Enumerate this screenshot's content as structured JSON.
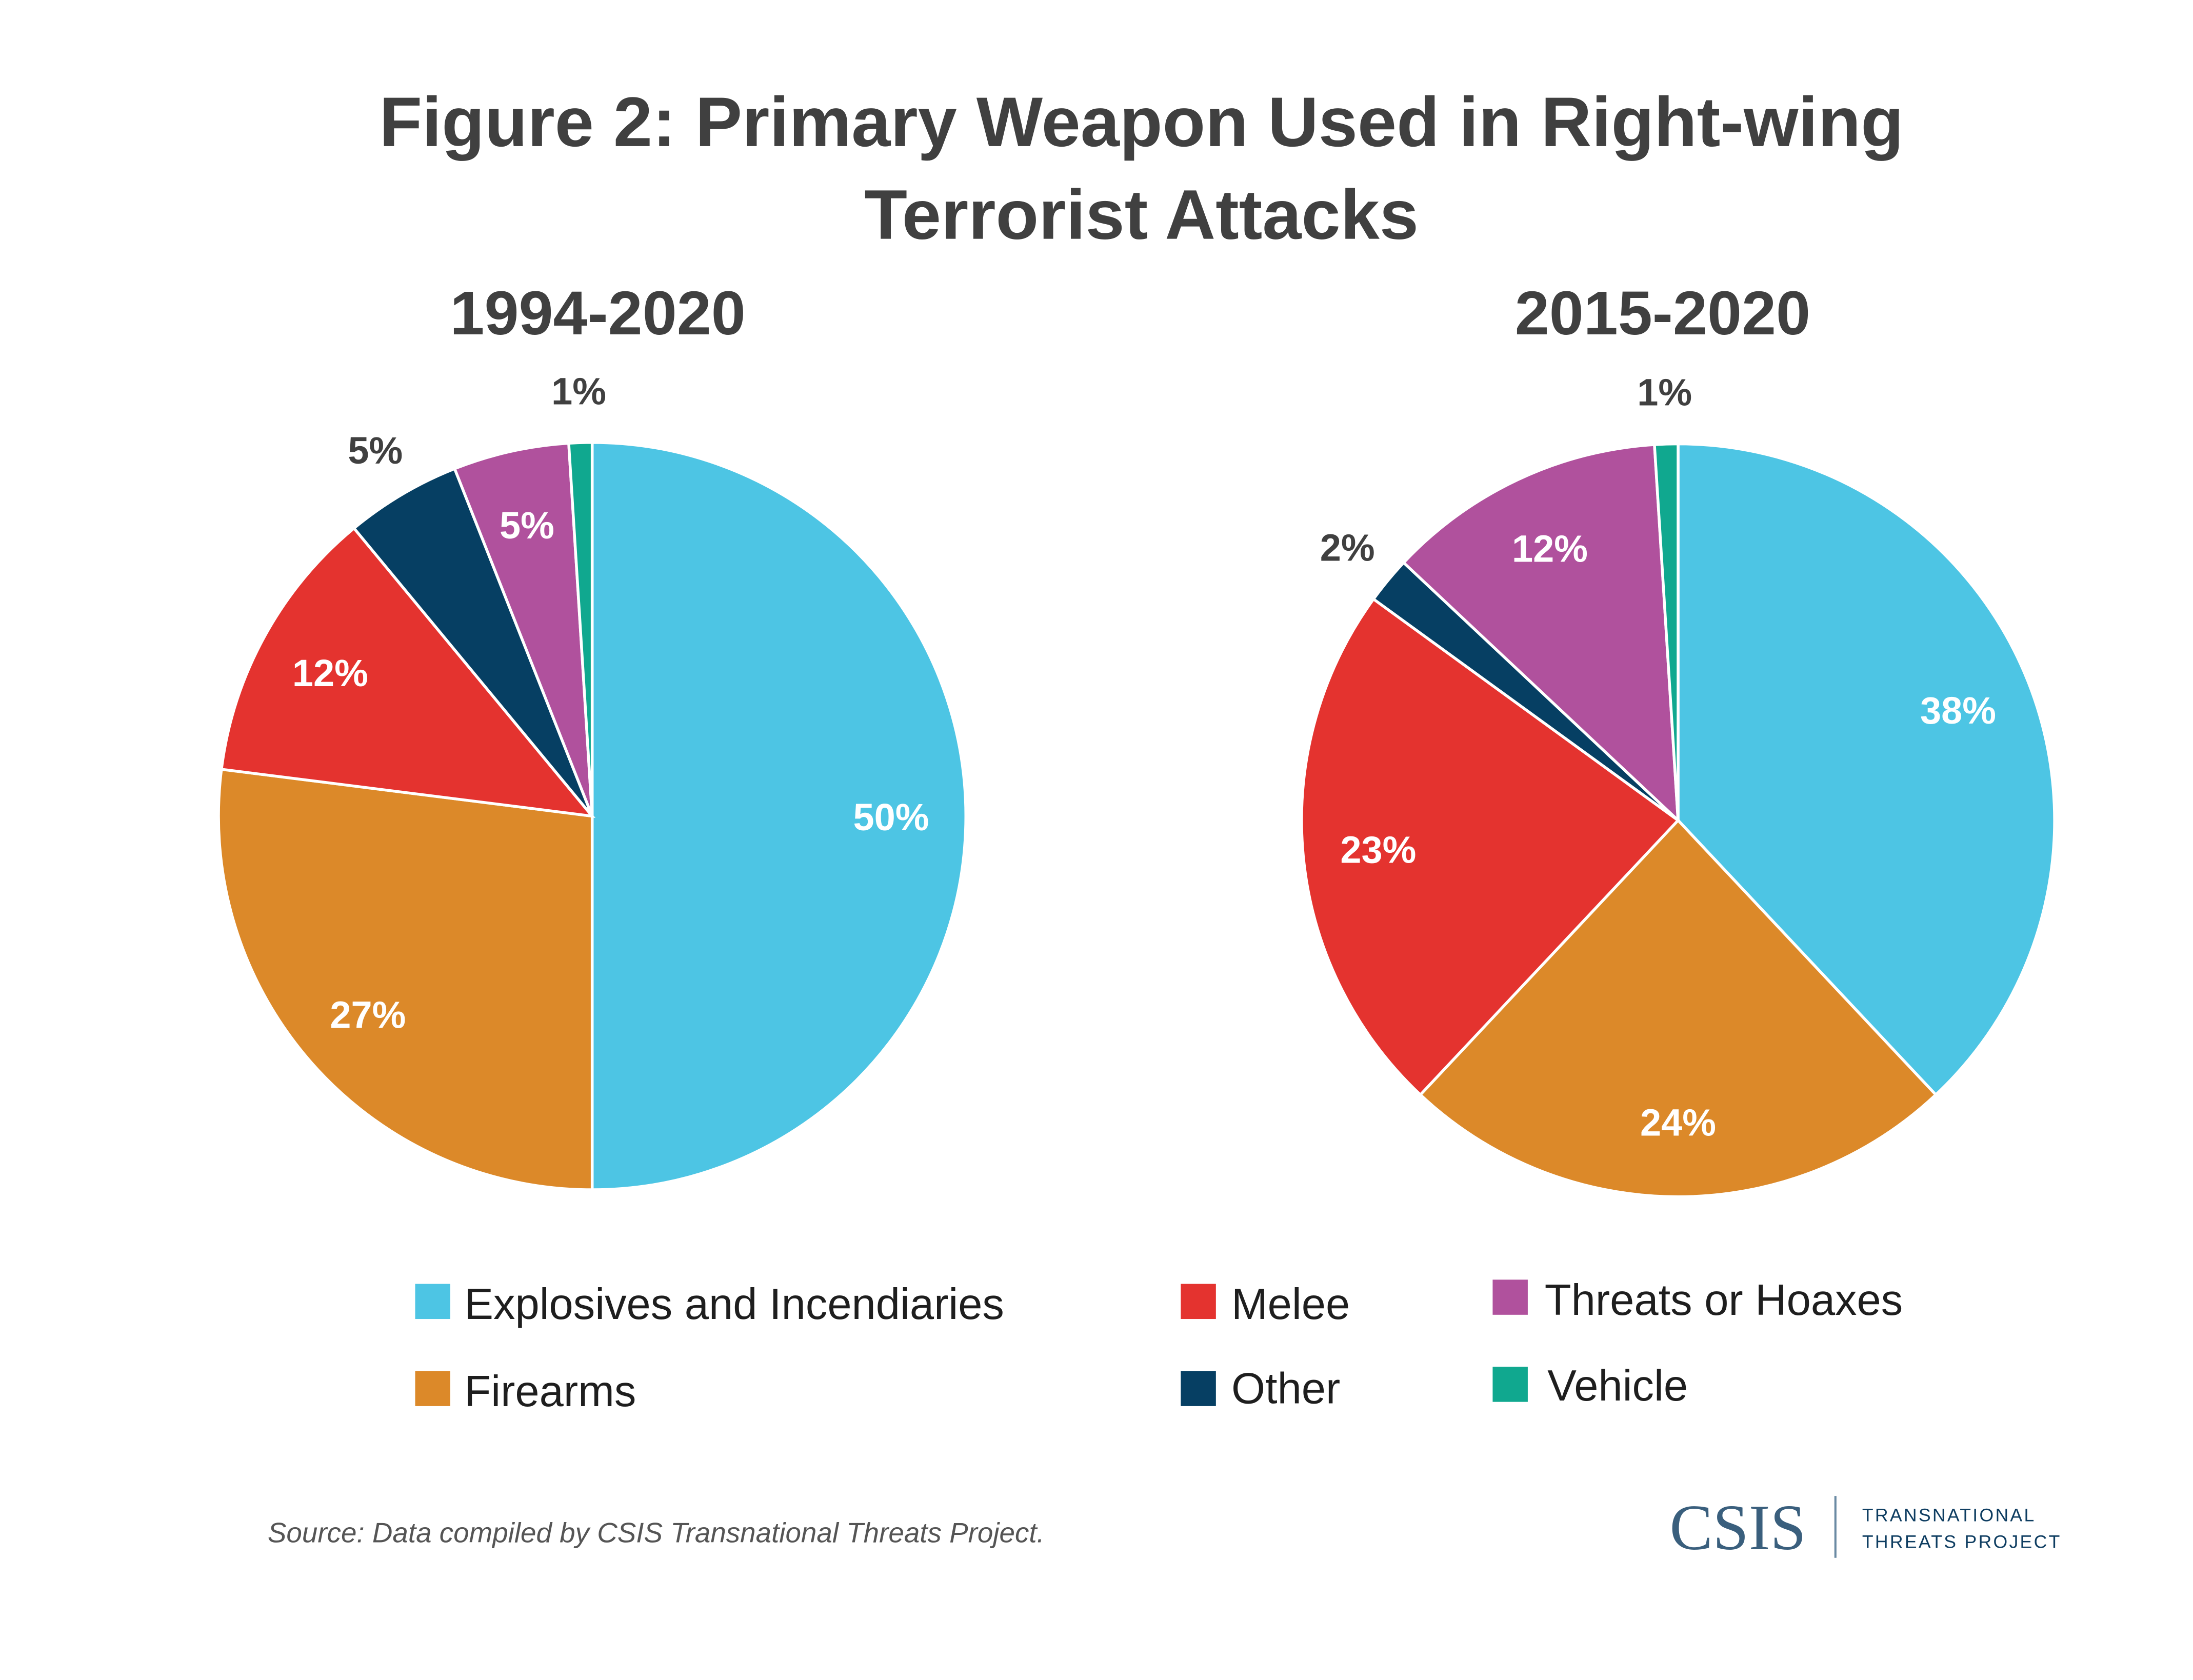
{
  "title_line1": "Figure 2: Primary Weapon Used in Right-wing",
  "title_line2": "Terrorist Attacks",
  "chart_data": [
    {
      "type": "pie",
      "title": "1994-2020",
      "categories": [
        "Explosives and Incendiaries",
        "Firearms",
        "Melee",
        "Other",
        "Threats or Hoaxes",
        "Vehicle"
      ],
      "values": [
        50,
        27,
        12,
        5,
        5,
        1
      ],
      "labels": [
        "50%",
        "27%",
        "12%",
        "5%",
        "5%",
        "1%"
      ]
    },
    {
      "type": "pie",
      "title": "2015-2020",
      "categories": [
        "Explosives and Incendiaries",
        "Firearms",
        "Melee",
        "Other",
        "Threats or Hoaxes",
        "Vehicle"
      ],
      "values": [
        38,
        24,
        23,
        2,
        12,
        1
      ],
      "labels": [
        "38%",
        "24%",
        "23%",
        "2%",
        "12%",
        "1%"
      ]
    }
  ],
  "colors": {
    "Explosives and Incendiaries": "#4dc5e4",
    "Firearms": "#dc8929",
    "Melee": "#e4332f",
    "Other": "#063f63",
    "Threats or Hoaxes": "#b0519d",
    "Vehicle": "#10a88f"
  },
  "legend": [
    "Explosives and Incendiaries",
    "Firearms",
    "Melee",
    "Other",
    "Threats or Hoaxes",
    "Vehicle"
  ],
  "source": "Source: Data compiled by CSIS Transnational Threats Project.",
  "logo": {
    "name": "CSIS",
    "line1": "TRANSNATIONAL",
    "line2": "THREATS PROJECT"
  }
}
